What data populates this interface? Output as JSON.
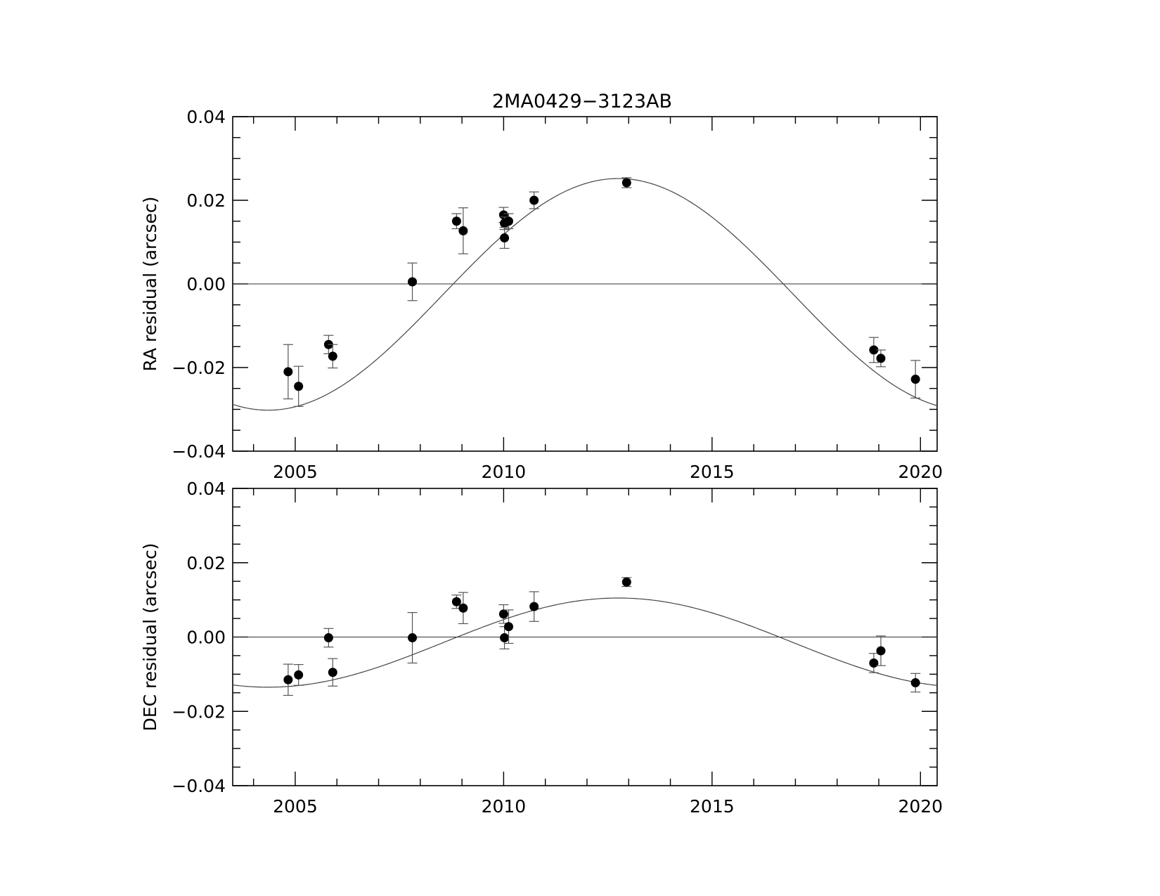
{
  "chart_data": [
    {
      "type": "scatter",
      "title": "2MA0429−3123AB",
      "xlabel": "",
      "ylabel": "RA residual (arcsec)",
      "xlim": [
        2003.5,
        2020.4
      ],
      "ylim": [
        -0.04,
        0.04
      ],
      "xticks": [
        2005,
        2010,
        2015,
        2020
      ],
      "xtick_labels": [
        "2005",
        "2010",
        "2015",
        "2020"
      ],
      "yticks": [
        0.04,
        0.02,
        0.0,
        -0.02,
        -0.04
      ],
      "ytick_labels": [
        "0.04",
        "0.02",
        "0.00",
        "−0.02",
        "−0.04"
      ],
      "grid": false,
      "zero_line": 0.0,
      "points": [
        {
          "x": 2004.83,
          "y": -0.021,
          "err": 0.0065
        },
        {
          "x": 2005.08,
          "y": -0.0245,
          "err": 0.0048
        },
        {
          "x": 2005.8,
          "y": -0.0145,
          "err": 0.0022
        },
        {
          "x": 2005.9,
          "y": -0.0173,
          "err": 0.0028
        },
        {
          "x": 2007.81,
          "y": 0.0005,
          "err": 0.0045
        },
        {
          "x": 2008.87,
          "y": 0.015,
          "err": 0.0018
        },
        {
          "x": 2009.03,
          "y": 0.0127,
          "err": 0.0055
        },
        {
          "x": 2010.0,
          "y": 0.0165,
          "err": 0.0018
        },
        {
          "x": 2010.02,
          "y": 0.0145,
          "err": 0.0015
        },
        {
          "x": 2010.02,
          "y": 0.011,
          "err": 0.0025
        },
        {
          "x": 2010.12,
          "y": 0.015,
          "err": 0.0018
        },
        {
          "x": 2010.73,
          "y": 0.02,
          "err": 0.002
        },
        {
          "x": 2012.95,
          "y": 0.0242,
          "err": 0.0012
        },
        {
          "x": 2018.88,
          "y": -0.0158,
          "err": 0.003
        },
        {
          "x": 2019.05,
          "y": -0.0178,
          "err": 0.002
        },
        {
          "x": 2019.88,
          "y": -0.0228,
          "err": 0.0045
        }
      ],
      "model_curve": {
        "amplitude": 0.0277,
        "center": 2012.75,
        "half_period": 8.4,
        "offset": -0.0025
      }
    },
    {
      "type": "scatter",
      "xlabel": "",
      "ylabel": "DEC residual (arcsec)",
      "xlim": [
        2003.5,
        2020.4
      ],
      "ylim": [
        -0.04,
        0.04
      ],
      "xticks": [
        2005,
        2010,
        2015,
        2020
      ],
      "xtick_labels": [
        "2005",
        "2010",
        "2015",
        "2020"
      ],
      "yticks": [
        0.04,
        0.02,
        0.0,
        -0.02,
        -0.04
      ],
      "ytick_labels": [
        "0.04",
        "0.02",
        "0.00",
        "−0.02",
        "−0.04"
      ],
      "grid": false,
      "zero_line": 0.0,
      "points": [
        {
          "x": 2004.83,
          "y": -0.0115,
          "err": 0.0042
        },
        {
          "x": 2005.08,
          "y": -0.0102,
          "err": 0.0028
        },
        {
          "x": 2005.8,
          "y": -0.0002,
          "err": 0.0025
        },
        {
          "x": 2005.9,
          "y": -0.0095,
          "err": 0.0037
        },
        {
          "x": 2007.81,
          "y": -0.0002,
          "err": 0.0068
        },
        {
          "x": 2008.87,
          "y": 0.0095,
          "err": 0.0018
        },
        {
          "x": 2009.03,
          "y": 0.0078,
          "err": 0.0042
        },
        {
          "x": 2010.0,
          "y": 0.0062,
          "err": 0.0025
        },
        {
          "x": 2010.02,
          "y": -0.0002,
          "err": 0.003
        },
        {
          "x": 2010.12,
          "y": 0.0028,
          "err": 0.0045
        },
        {
          "x": 2010.73,
          "y": 0.0082,
          "err": 0.004
        },
        {
          "x": 2012.95,
          "y": 0.0148,
          "err": 0.0012
        },
        {
          "x": 2018.88,
          "y": -0.007,
          "err": 0.0026
        },
        {
          "x": 2019.05,
          "y": -0.0037,
          "err": 0.004
        },
        {
          "x": 2019.88,
          "y": -0.0123,
          "err": 0.0025
        }
      ],
      "model_curve": {
        "amplitude": 0.012,
        "center": 2012.75,
        "half_period": 8.4,
        "offset": -0.0015
      }
    }
  ]
}
